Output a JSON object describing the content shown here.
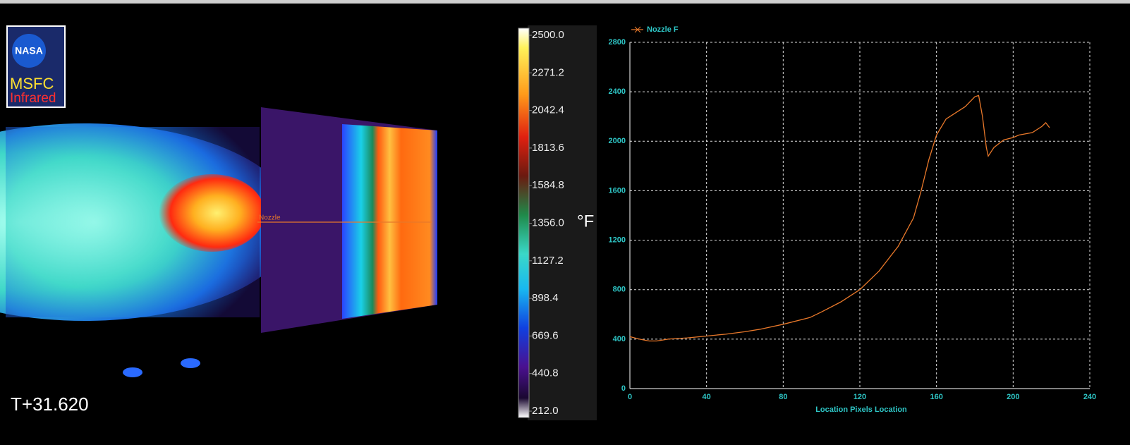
{
  "logo": {
    "agency": "NASA",
    "line1": "MSFC",
    "line2": "Infrared"
  },
  "timestamp": "T+31.620",
  "probe_label": "Nozzle",
  "chart_data": [
    {
      "type": "colorbar",
      "unit": "°F",
      "ylim": [
        212,
        2500
      ],
      "yticks": [
        {
          "value": 212,
          "label": "212.0"
        },
        440.8,
        669.6,
        898.4,
        1127.2,
        {
          "value": 1356,
          "label": "1356.0"
        },
        1584.8,
        1813.6,
        2042.4,
        2271.2,
        {
          "value": 2500,
          "label": "2500.0"
        }
      ]
    },
    {
      "type": "line",
      "xlabel": "Location Pixels Location",
      "x": [
        0,
        5,
        10,
        14,
        20,
        30,
        40,
        50,
        60,
        68,
        80,
        94,
        100,
        110,
        120,
        130,
        140,
        148,
        152,
        156,
        160,
        165,
        170,
        175,
        180,
        182,
        184,
        186,
        187,
        190,
        195,
        200,
        203,
        210,
        215,
        217,
        219
      ],
      "series": [
        {
          "name": "Nozzle F",
          "color": "#e8782a",
          "values": [
            420,
            400,
            385,
            385,
            400,
            410,
            425,
            440,
            460,
            480,
            520,
            575,
            620,
            700,
            800,
            950,
            1150,
            1380,
            1600,
            1850,
            2050,
            2180,
            2230,
            2280,
            2360,
            2370,
            2200,
            1950,
            1880,
            1950,
            2010,
            2030,
            2050,
            2070,
            2120,
            2150,
            2110
          ]
        }
      ],
      "xlim": [
        0,
        240
      ],
      "xticks": [
        0,
        40,
        80,
        120,
        160,
        200,
        240
      ],
      "ylim": [
        0,
        2800
      ],
      "yticks": [
        0,
        400,
        800,
        1200,
        1600,
        2000,
        2400,
        2800
      ],
      "grid": true
    }
  ]
}
